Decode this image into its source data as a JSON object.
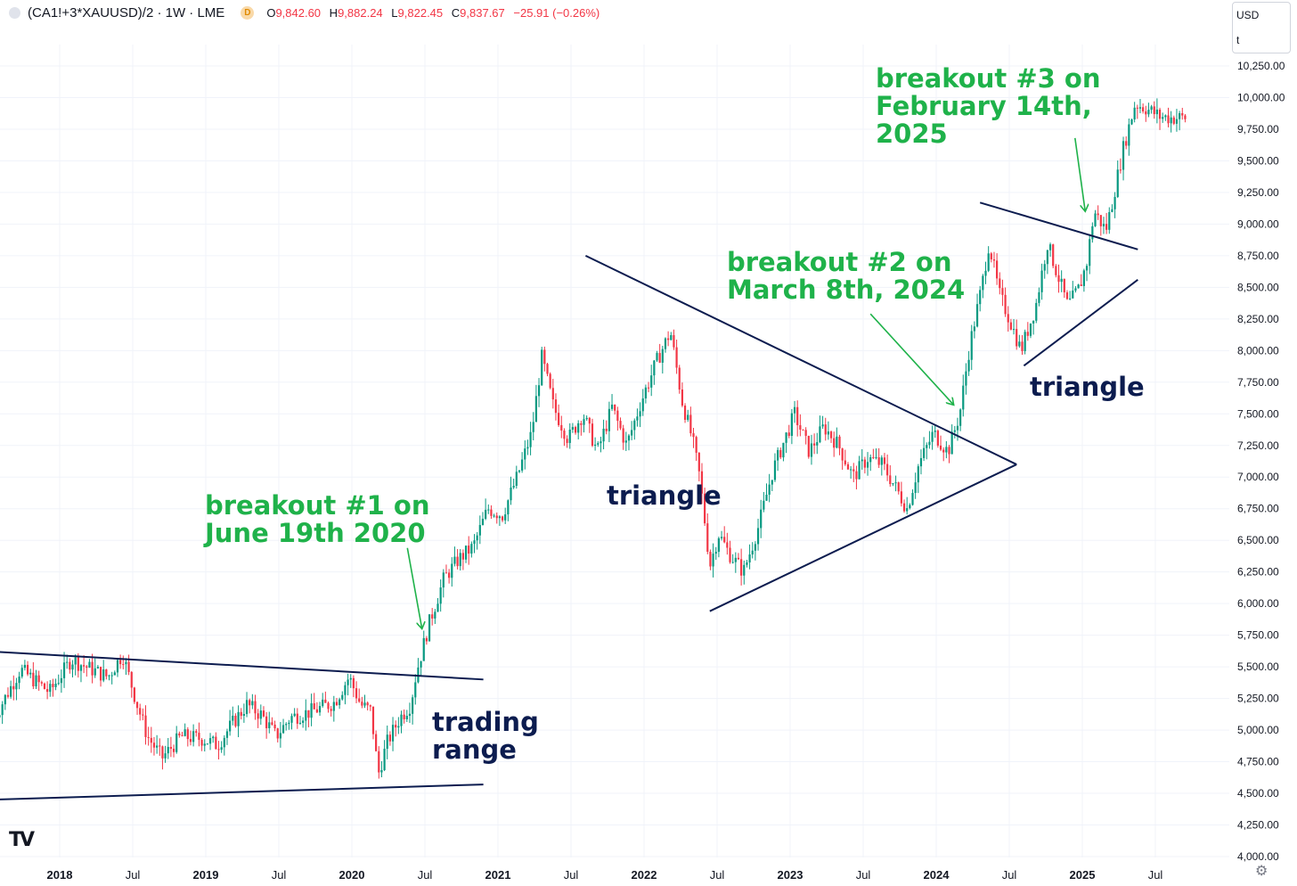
{
  "header": {
    "symbol": "(CA1!+3*XAUUSD)/2 · 1W · LME",
    "delayed_badge": "D",
    "open_label": "O",
    "open": "9,842.60",
    "high_label": "H",
    "high": "9,882.24",
    "low_label": "L",
    "low": "9,822.45",
    "close_label": "C",
    "close": "9,837.67",
    "change": "−25.91 (−0.26%)"
  },
  "units": {
    "currency": "USD",
    "unit": "t"
  },
  "colors": {
    "up": "#089981",
    "down": "#f23645",
    "line": "#0c1c4f",
    "green_text": "#1fb24a",
    "grid": "#f0f3fa",
    "axis_text": "#131722"
  },
  "chart_data": {
    "type": "candlestick",
    "title": "(CA1!+3*XAUUSD)/2 · 1W · LME",
    "ylabel": "USD / t",
    "ylim": [
      4000,
      10350
    ],
    "x_range": [
      2017.55,
      2025.72
    ],
    "y_ticks": [
      4000,
      4250,
      4500,
      4750,
      5000,
      5250,
      5500,
      5750,
      6000,
      6250,
      6500,
      6750,
      7000,
      7250,
      7500,
      7750,
      8000,
      8250,
      8500,
      8750,
      9000,
      9250,
      9500,
      9750,
      10000,
      10250
    ],
    "y_tick_labels": [
      "4,000.00",
      "4,250.00",
      "4,500.00",
      "4,750.00",
      "5,000.00",
      "5,250.00",
      "5,500.00",
      "5,750.00",
      "6,000.00",
      "6,250.00",
      "6,500.00",
      "6,750.00",
      "7,000.00",
      "7,250.00",
      "7,500.00",
      "7,750.00",
      "8,000.00",
      "8,250.00",
      "8,500.00",
      "8,750.00",
      "9,000.00",
      "9,250.00",
      "9,500.00",
      "9,750.00",
      "10,000.00",
      "10,250.00"
    ],
    "x_ticks": [
      {
        "t": 2018.0,
        "label": "2018",
        "bold": true
      },
      {
        "t": 2018.5,
        "label": "Jul",
        "bold": false
      },
      {
        "t": 2019.0,
        "label": "2019",
        "bold": true
      },
      {
        "t": 2019.5,
        "label": "Jul",
        "bold": false
      },
      {
        "t": 2020.0,
        "label": "2020",
        "bold": true
      },
      {
        "t": 2020.5,
        "label": "Jul",
        "bold": false
      },
      {
        "t": 2021.0,
        "label": "2021",
        "bold": true
      },
      {
        "t": 2021.5,
        "label": "Jul",
        "bold": false
      },
      {
        "t": 2022.0,
        "label": "2022",
        "bold": true
      },
      {
        "t": 2022.5,
        "label": "Jul",
        "bold": false
      },
      {
        "t": 2023.0,
        "label": "2023",
        "bold": true
      },
      {
        "t": 2023.5,
        "label": "Jul",
        "bold": false
      },
      {
        "t": 2024.0,
        "label": "2024",
        "bold": true
      },
      {
        "t": 2024.5,
        "label": "Jul",
        "bold": false
      },
      {
        "t": 2025.0,
        "label": "2025",
        "bold": true
      },
      {
        "t": 2025.5,
        "label": "Jul",
        "bold": false
      }
    ],
    "price_path_anchors": [
      [
        2017.55,
        5050
      ],
      [
        2017.75,
        5480
      ],
      [
        2017.95,
        5300
      ],
      [
        2018.1,
        5560
      ],
      [
        2018.2,
        5500
      ],
      [
        2018.35,
        5420
      ],
      [
        2018.45,
        5600
      ],
      [
        2018.55,
        5200
      ],
      [
        2018.62,
        4950
      ],
      [
        2018.72,
        4780
      ],
      [
        2018.85,
        4950
      ],
      [
        2019.0,
        4930
      ],
      [
        2019.1,
        4880
      ],
      [
        2019.2,
        5050
      ],
      [
        2019.3,
        5200
      ],
      [
        2019.4,
        5120
      ],
      [
        2019.5,
        4950
      ],
      [
        2019.6,
        5100
      ],
      [
        2019.75,
        5150
      ],
      [
        2019.9,
        5220
      ],
      [
        2020.0,
        5420
      ],
      [
        2020.08,
        5200
      ],
      [
        2020.15,
        5150
      ],
      [
        2020.2,
        4650
      ],
      [
        2020.26,
        4900
      ],
      [
        2020.35,
        5100
      ],
      [
        2020.42,
        5200
      ],
      [
        2020.46,
        5450
      ],
      [
        2020.55,
        5850
      ],
      [
        2020.65,
        6200
      ],
      [
        2020.75,
        6350
      ],
      [
        2020.85,
        6450
      ],
      [
        2020.95,
        6750
      ],
      [
        2021.05,
        6700
      ],
      [
        2021.15,
        7000
      ],
      [
        2021.25,
        7350
      ],
      [
        2021.32,
        7950
      ],
      [
        2021.4,
        7550
      ],
      [
        2021.5,
        7300
      ],
      [
        2021.6,
        7500
      ],
      [
        2021.7,
        7200
      ],
      [
        2021.8,
        7550
      ],
      [
        2021.9,
        7250
      ],
      [
        2022.0,
        7600
      ],
      [
        2022.1,
        7900
      ],
      [
        2022.2,
        8150
      ],
      [
        2022.28,
        7600
      ],
      [
        2022.35,
        7300
      ],
      [
        2022.4,
        7000
      ],
      [
        2022.47,
        6300
      ],
      [
        2022.53,
        6550
      ],
      [
        2022.6,
        6400
      ],
      [
        2022.7,
        6250
      ],
      [
        2022.8,
        6600
      ],
      [
        2022.9,
        7050
      ],
      [
        2023.05,
        7500
      ],
      [
        2023.15,
        7200
      ],
      [
        2023.25,
        7400
      ],
      [
        2023.35,
        7250
      ],
      [
        2023.45,
        7000
      ],
      [
        2023.55,
        7150
      ],
      [
        2023.65,
        7100
      ],
      [
        2023.75,
        6900
      ],
      [
        2023.82,
        6750
      ],
      [
        2023.9,
        7100
      ],
      [
        2024.0,
        7350
      ],
      [
        2024.1,
        7200
      ],
      [
        2024.18,
        7500
      ],
      [
        2024.25,
        8050
      ],
      [
        2024.33,
        8500
      ],
      [
        2024.38,
        8850
      ],
      [
        2024.45,
        8450
      ],
      [
        2024.52,
        8250
      ],
      [
        2024.6,
        8000
      ],
      [
        2024.7,
        8350
      ],
      [
        2024.78,
        8850
      ],
      [
        2024.85,
        8600
      ],
      [
        2024.92,
        8350
      ],
      [
        2025.0,
        8500
      ],
      [
        2025.05,
        8700
      ],
      [
        2025.1,
        9100
      ],
      [
        2025.18,
        8950
      ],
      [
        2025.22,
        9150
      ],
      [
        2025.3,
        9600
      ],
      [
        2025.38,
        9950
      ],
      [
        2025.45,
        9920
      ],
      [
        2025.55,
        9850
      ],
      [
        2025.62,
        9840
      ]
    ],
    "trendlines": [
      {
        "name": "trading-range-upper",
        "from": [
          2017.55,
          5620
        ],
        "to": [
          2020.9,
          5400
        ]
      },
      {
        "name": "trading-range-lower",
        "from": [
          2017.55,
          4450
        ],
        "to": [
          2020.9,
          4570
        ]
      },
      {
        "name": "triangle-1-upper",
        "from": [
          2021.6,
          8750
        ],
        "to": [
          2024.55,
          7100
        ]
      },
      {
        "name": "triangle-1-lower",
        "from": [
          2022.45,
          5940
        ],
        "to": [
          2024.55,
          7100
        ]
      },
      {
        "name": "triangle-2-upper",
        "from": [
          2024.3,
          9170
        ],
        "to": [
          2025.38,
          8800
        ]
      },
      {
        "name": "triangle-2-lower",
        "from": [
          2024.6,
          7880
        ],
        "to": [
          2025.38,
          8560
        ]
      }
    ],
    "annotations": [
      {
        "name": "breakout-1",
        "lines": [
          "breakout #1 on",
          "June 19th 2020"
        ]
      },
      {
        "name": "breakout-2",
        "lines": [
          "breakout #2 on",
          "March 8th, 2024"
        ]
      },
      {
        "name": "breakout-3",
        "lines": [
          "breakout #3 on",
          "February 14th,",
          "2025"
        ]
      },
      {
        "name": "trading-range-label",
        "lines": [
          "trading",
          "range"
        ]
      },
      {
        "name": "triangle-1-label",
        "lines": [
          "triangle"
        ]
      },
      {
        "name": "triangle-2-label",
        "lines": [
          "triangle"
        ]
      }
    ],
    "arrows": [
      {
        "name": "arrow-breakout-1",
        "from": [
          2020.38,
          6440
        ],
        "to": [
          2020.48,
          5800
        ]
      },
      {
        "name": "arrow-breakout-2",
        "from": [
          2023.55,
          8290
        ],
        "to": [
          2024.12,
          7570
        ]
      },
      {
        "name": "arrow-breakout-3",
        "from": [
          2024.95,
          9680
        ],
        "to": [
          2025.02,
          9100
        ]
      }
    ]
  }
}
